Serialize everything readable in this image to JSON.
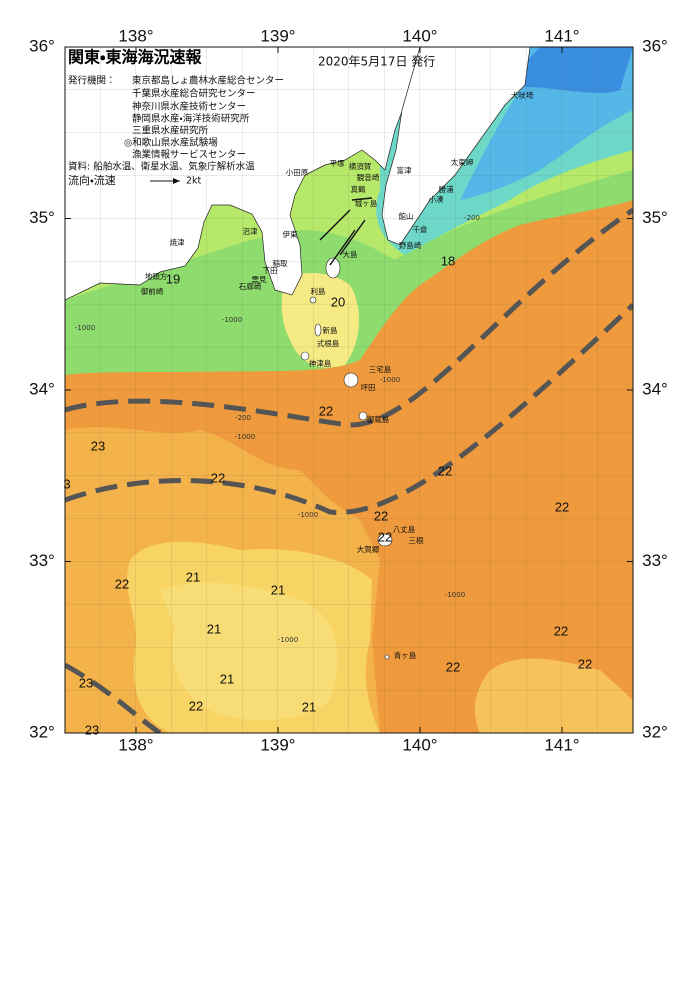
{
  "header": {
    "title": "関東・東海海況速報",
    "date": "2020年5月17日 発行"
  },
  "issuers": {
    "label": "発行機関：",
    "items": [
      "東京都島しょ農林水産総合センター",
      "千葉県水産総合研究センター",
      "神奈川県水産技術センター",
      "静岡県水産・海洋技術研究所",
      "三重県水産研究所",
      "◎和歌山県水産試験場",
      "漁業情報サービスセンター"
    ]
  },
  "sources": "資料: 船舶水温、衛星水温、気象庁解析水温",
  "legend": {
    "label": "流向・流速",
    "speed": "2kt"
  },
  "lon_ticks": [
    {
      "value": 138,
      "label": "138°"
    },
    {
      "value": 139,
      "label": "139°"
    },
    {
      "value": 140,
      "label": "140°"
    },
    {
      "value": 141,
      "label": "141°"
    }
  ],
  "lat_ticks": [
    {
      "value": 36,
      "label": "36°"
    },
    {
      "value": 35,
      "label": "35°"
    },
    {
      "value": 34,
      "label": "34°"
    },
    {
      "value": 33,
      "label": "33°"
    },
    {
      "value": 32,
      "label": "32°"
    }
  ],
  "place_names": [
    "犬吠埼",
    "太東岬",
    "勝浦",
    "小湊",
    "館山",
    "千倉",
    "野島崎",
    "富津",
    "観音崎",
    "横須賀",
    "平塚",
    "小田原",
    "真鶴",
    "城ヶ島",
    "伊東",
    "稲取",
    "下田",
    "雲見",
    "石廊崎",
    "沼津",
    "焼津",
    "地頭方",
    "御前崎",
    "大島",
    "利島",
    "新島",
    "式根島",
    "神津島",
    "三宅島",
    "坪田",
    "御蔵島",
    "八丈島",
    "三根",
    "大賀郷",
    "青ヶ島"
  ],
  "temperature_labels": [
    "19",
    "18",
    "20",
    "22",
    "23",
    "3",
    "22",
    "22",
    "22",
    "22",
    "22",
    "22",
    "21",
    "21",
    "21",
    "21",
    "21",
    "22",
    "23",
    "23",
    "22",
    "22",
    "22"
  ],
  "depth_labels": [
    "-200",
    "-200",
    "-1000",
    "-1000",
    "-1000",
    "-1000",
    "-1000",
    "-1000",
    "-1000"
  ]
}
